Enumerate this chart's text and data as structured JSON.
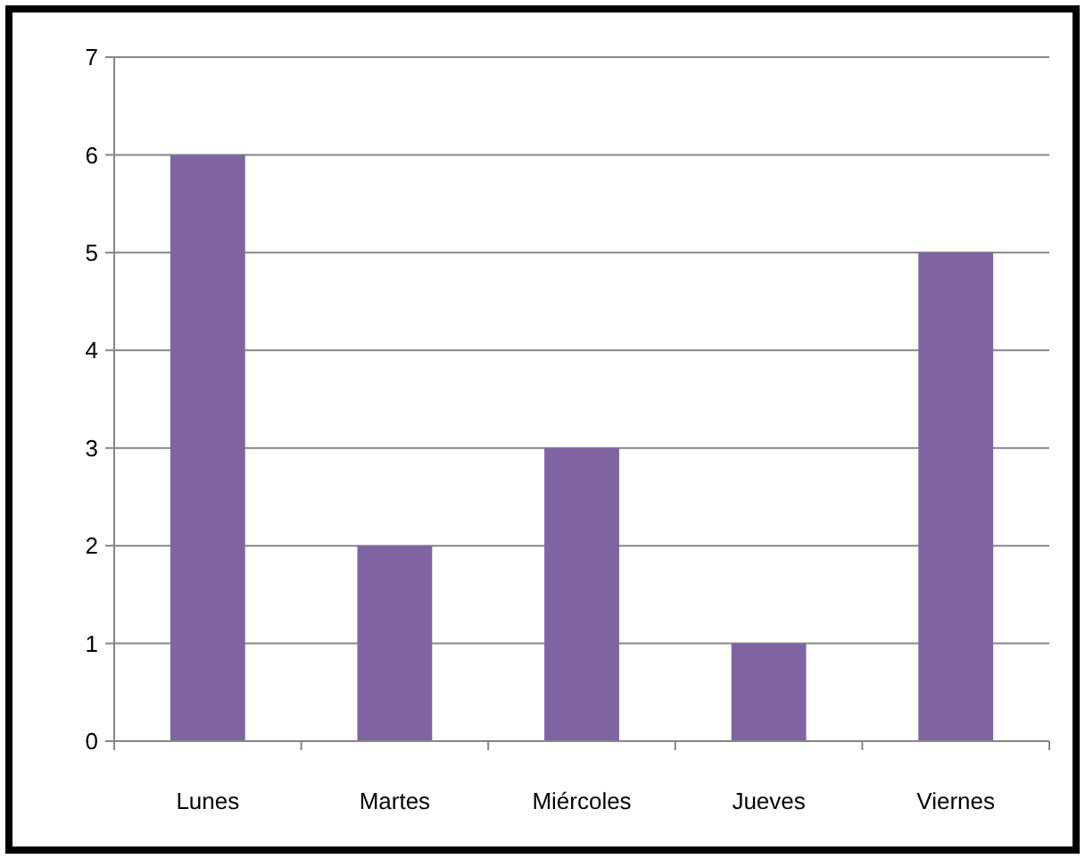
{
  "chart_data": {
    "type": "bar",
    "categories": [
      "Lunes",
      "Martes",
      "Miércoles",
      "Jueves",
      "Viernes"
    ],
    "values": [
      6,
      2,
      3,
      1,
      5
    ],
    "color": "#8064a2",
    "ylim": [
      0,
      7
    ],
    "yticks": [
      0,
      1,
      2,
      3,
      4,
      5,
      6,
      7
    ],
    "grid": "y"
  }
}
